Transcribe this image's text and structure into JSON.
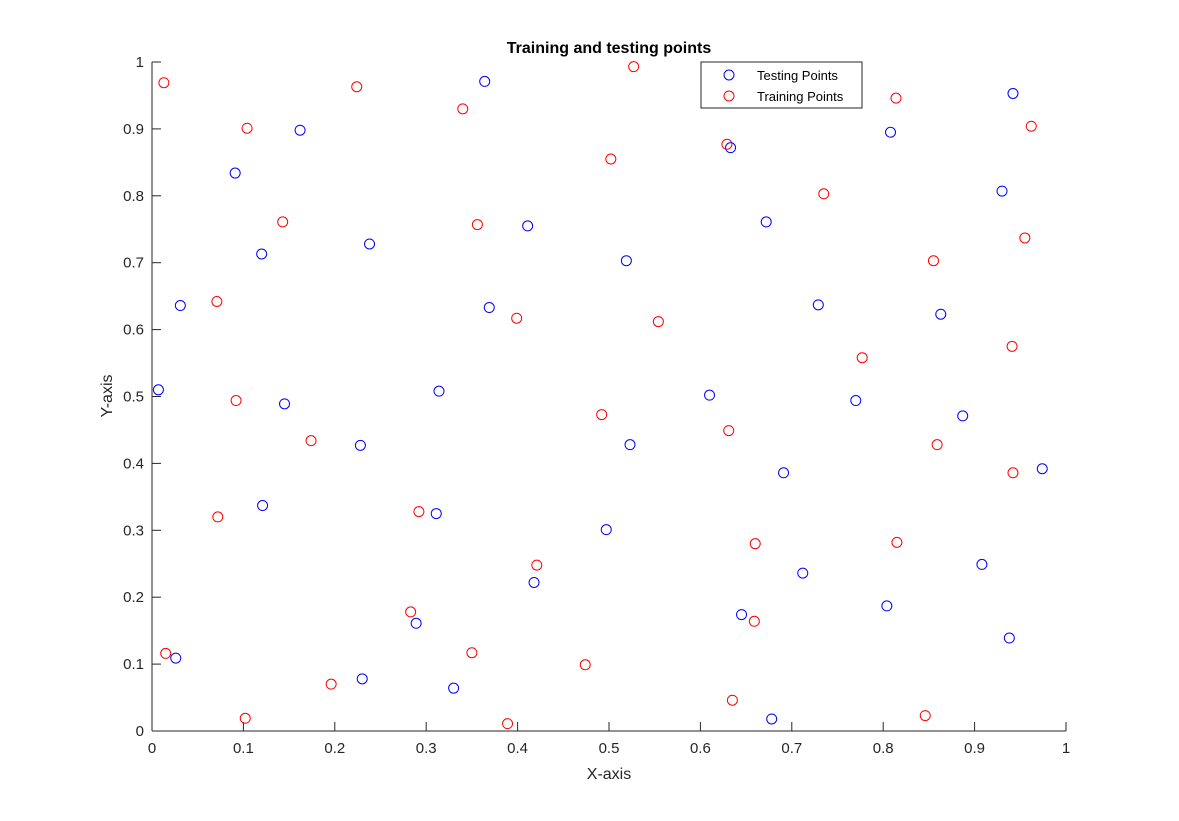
{
  "chart_data": {
    "type": "scatter",
    "title": "Training and testing points",
    "xlabel": "X-axis",
    "ylabel": "Y-axis",
    "xlim": [
      0,
      1
    ],
    "ylim": [
      0,
      1
    ],
    "xticks": [
      0,
      0.1,
      0.2,
      0.3,
      0.4,
      0.5,
      0.6,
      0.7,
      0.8,
      0.9,
      1
    ],
    "yticks": [
      0,
      0.1,
      0.2,
      0.3,
      0.4,
      0.5,
      0.6,
      0.7,
      0.8,
      0.9,
      1
    ],
    "xtick_labels": [
      "0",
      "0.1",
      "0.2",
      "0.3",
      "0.4",
      "0.5",
      "0.6",
      "0.7",
      "0.8",
      "0.9",
      "1"
    ],
    "ytick_labels": [
      "0",
      "0.1",
      "0.2",
      "0.3",
      "0.4",
      "0.5",
      "0.6",
      "0.7",
      "0.8",
      "0.9",
      "1"
    ],
    "grid": false,
    "legend_position": "top-right",
    "series": [
      {
        "name": "Testing Points",
        "color": "#0000ff",
        "marker": "circle-open",
        "points": [
          [
            0.364,
            0.971
          ],
          [
            0.942,
            0.953
          ],
          [
            0.162,
            0.898
          ],
          [
            0.808,
            0.895
          ],
          [
            0.633,
            0.872
          ],
          [
            0.091,
            0.834
          ],
          [
            0.93,
            0.807
          ],
          [
            0.672,
            0.761
          ],
          [
            0.411,
            0.755
          ],
          [
            0.238,
            0.728
          ],
          [
            0.12,
            0.713
          ],
          [
            0.519,
            0.703
          ],
          [
            0.031,
            0.636
          ],
          [
            0.729,
            0.637
          ],
          [
            0.369,
            0.633
          ],
          [
            0.863,
            0.623
          ],
          [
            0.007,
            0.51
          ],
          [
            0.314,
            0.508
          ],
          [
            0.61,
            0.502
          ],
          [
            0.77,
            0.494
          ],
          [
            0.145,
            0.489
          ],
          [
            0.887,
            0.471
          ],
          [
            0.228,
            0.427
          ],
          [
            0.523,
            0.428
          ],
          [
            0.974,
            0.392
          ],
          [
            0.691,
            0.386
          ],
          [
            0.121,
            0.337
          ],
          [
            0.311,
            0.325
          ],
          [
            0.497,
            0.301
          ],
          [
            0.712,
            0.236
          ],
          [
            0.908,
            0.249
          ],
          [
            0.418,
            0.222
          ],
          [
            0.804,
            0.187
          ],
          [
            0.645,
            0.174
          ],
          [
            0.289,
            0.161
          ],
          [
            0.938,
            0.139
          ],
          [
            0.026,
            0.109
          ],
          [
            0.23,
            0.078
          ],
          [
            0.33,
            0.064
          ],
          [
            0.678,
            0.018
          ]
        ]
      },
      {
        "name": "Training Points",
        "color": "#ff0000",
        "marker": "circle-open",
        "points": [
          [
            0.013,
            0.969
          ],
          [
            0.527,
            0.993
          ],
          [
            0.224,
            0.963
          ],
          [
            0.814,
            0.946
          ],
          [
            0.34,
            0.93
          ],
          [
            0.104,
            0.901
          ],
          [
            0.962,
            0.904
          ],
          [
            0.629,
            0.877
          ],
          [
            0.502,
            0.855
          ],
          [
            0.735,
            0.803
          ],
          [
            0.143,
            0.761
          ],
          [
            0.356,
            0.757
          ],
          [
            0.955,
            0.737
          ],
          [
            0.855,
            0.703
          ],
          [
            0.071,
            0.642
          ],
          [
            0.399,
            0.617
          ],
          [
            0.554,
            0.612
          ],
          [
            0.941,
            0.575
          ],
          [
            0.777,
            0.558
          ],
          [
            0.092,
            0.494
          ],
          [
            0.492,
            0.473
          ],
          [
            0.631,
            0.449
          ],
          [
            0.174,
            0.434
          ],
          [
            0.859,
            0.428
          ],
          [
            0.942,
            0.386
          ],
          [
            0.292,
            0.328
          ],
          [
            0.072,
            0.32
          ],
          [
            0.815,
            0.282
          ],
          [
            0.66,
            0.28
          ],
          [
            0.421,
            0.248
          ],
          [
            0.283,
            0.178
          ],
          [
            0.659,
            0.164
          ],
          [
            0.015,
            0.116
          ],
          [
            0.35,
            0.117
          ],
          [
            0.474,
            0.099
          ],
          [
            0.196,
            0.07
          ],
          [
            0.635,
            0.046
          ],
          [
            0.846,
            0.023
          ],
          [
            0.102,
            0.019
          ],
          [
            0.389,
            0.011
          ]
        ]
      }
    ]
  }
}
